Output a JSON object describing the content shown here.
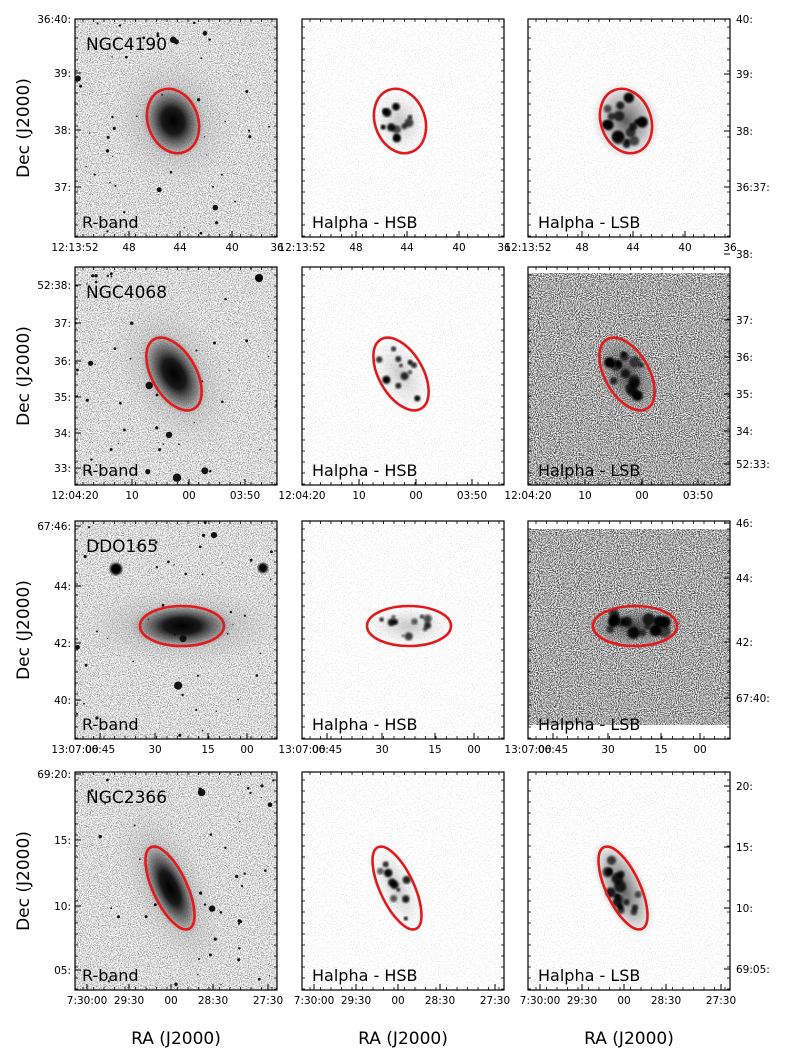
{
  "figure": {
    "xlabel": "RA (J2000)",
    "ylabel": "Dec (J2000)",
    "column_labels": [
      "R-band",
      "Halpha - HSB",
      "Halpha - LSB"
    ],
    "ellipse_color": "#e31a1c"
  },
  "rows": [
    {
      "galaxy": "NGC4190",
      "ra_ticks": [
        "12:13:52",
        "48",
        "44",
        "40",
        "36"
      ],
      "dec_ticks_left": [
        "36:40:",
        "39:",
        "38:",
        "37:"
      ],
      "dec_ticks_right": [
        "40:",
        "39:",
        "38:",
        "36:37:"
      ]
    },
    {
      "galaxy": "NGC4068",
      "ra_ticks": [
        "12:04:20",
        "10",
        "00",
        "03:50"
      ],
      "dec_ticks_left": [
        "52:38:",
        "37:",
        "36:",
        "35:",
        "34:",
        "33:"
      ],
      "dec_ticks_right": [
        "38:",
        "37:",
        "36:",
        "35:",
        "34:",
        "52:33:"
      ]
    },
    {
      "galaxy": "DDO165",
      "ra_ticks": [
        "13:07:00",
        "06:45",
        "30",
        "15",
        "00"
      ],
      "dec_ticks_left": [
        "67:46:",
        "44:",
        "42:",
        "40:"
      ],
      "dec_ticks_right": [
        "46:",
        "44:",
        "42:",
        "67:40:"
      ]
    },
    {
      "galaxy": "NGC2366",
      "ra_ticks": [
        "7:30:00",
        "29:30",
        "00",
        "28:30",
        "27:30"
      ],
      "dec_ticks_left": [
        "69:20:",
        "15:",
        "10:",
        "05:"
      ],
      "dec_ticks_right": [
        "20:",
        "15:",
        "10:",
        "69:05:"
      ]
    }
  ]
}
